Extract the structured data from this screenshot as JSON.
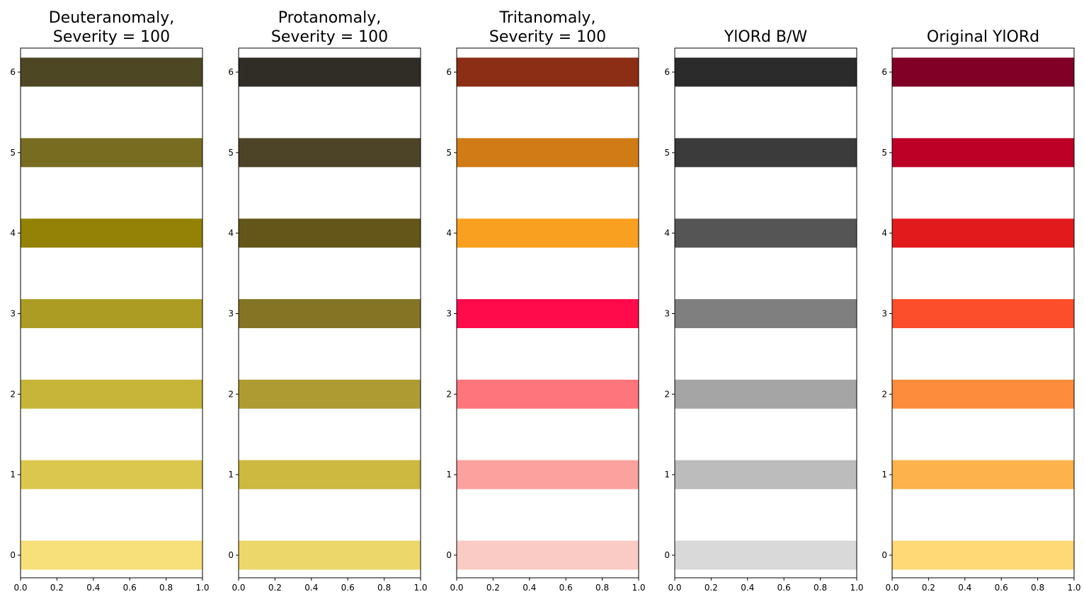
{
  "chart_data": [
    {
      "type": "bar",
      "orientation": "horizontal",
      "title_lines": [
        "Deuteranomaly,",
        "Severity = 100"
      ],
      "categories": [
        "0",
        "1",
        "2",
        "3",
        "4",
        "5",
        "6"
      ],
      "values": [
        1,
        1,
        1,
        1,
        1,
        1,
        1
      ],
      "colors": [
        "#f7e07a",
        "#dcc74e",
        "#c7b53a",
        "#ad9c24",
        "#938206",
        "#786c20",
        "#4d4724"
      ],
      "xlim": [
        0,
        1
      ],
      "x_ticks": [
        "0.0",
        "0.2",
        "0.4",
        "0.6",
        "0.8",
        "1.0"
      ],
      "grid": false
    },
    {
      "type": "bar",
      "orientation": "horizontal",
      "title_lines": [
        "Protanomaly,",
        "Severity = 100"
      ],
      "categories": [
        "0",
        "1",
        "2",
        "3",
        "4",
        "5",
        "6"
      ],
      "values": [
        1,
        1,
        1,
        1,
        1,
        1,
        1
      ],
      "colors": [
        "#ecd76a",
        "#cdb840",
        "#ae9c33",
        "#857424",
        "#645619",
        "#4d4428",
        "#302c26"
      ],
      "xlim": [
        0,
        1
      ],
      "x_ticks": [
        "0.0",
        "0.2",
        "0.4",
        "0.6",
        "0.8",
        "1.0"
      ],
      "grid": false
    },
    {
      "type": "bar",
      "orientation": "horizontal",
      "title_lines": [
        "Tritanomaly,",
        "Severity = 100"
      ],
      "categories": [
        "0",
        "1",
        "2",
        "3",
        "4",
        "5",
        "6"
      ],
      "values": [
        1,
        1,
        1,
        1,
        1,
        1,
        1
      ],
      "colors": [
        "#f9cbc4",
        "#fca19e",
        "#ff757c",
        "#ff0a4a",
        "#f9a020",
        "#d17b17",
        "#8c2d16"
      ],
      "xlim": [
        0,
        1
      ],
      "x_ticks": [
        "0.0",
        "0.2",
        "0.4",
        "0.6",
        "0.8",
        "1.0"
      ],
      "grid": false
    },
    {
      "type": "bar",
      "orientation": "horizontal",
      "title_lines": [
        "YlORd B/W"
      ],
      "categories": [
        "0",
        "1",
        "2",
        "3",
        "4",
        "5",
        "6"
      ],
      "values": [
        1,
        1,
        1,
        1,
        1,
        1,
        1
      ],
      "colors": [
        "#d9d9d9",
        "#bcbcbc",
        "#a5a5a5",
        "#7f7f7f",
        "#555555",
        "#3b3b3b",
        "#2b2b2b"
      ],
      "xlim": [
        0,
        1
      ],
      "x_ticks": [
        "0.0",
        "0.2",
        "0.4",
        "0.6",
        "0.8",
        "1.0"
      ],
      "grid": false
    },
    {
      "type": "bar",
      "orientation": "horizontal",
      "title_lines": [
        "Original YlORd"
      ],
      "categories": [
        "0",
        "1",
        "2",
        "3",
        "4",
        "5",
        "6"
      ],
      "values": [
        1,
        1,
        1,
        1,
        1,
        1,
        1
      ],
      "colors": [
        "#fed976",
        "#feb24c",
        "#fd8d3c",
        "#fc4e2a",
        "#e31a1c",
        "#bd0026",
        "#800026"
      ],
      "xlim": [
        0,
        1
      ],
      "x_ticks": [
        "0.0",
        "0.2",
        "0.4",
        "0.6",
        "0.8",
        "1.0"
      ],
      "grid": false
    }
  ]
}
